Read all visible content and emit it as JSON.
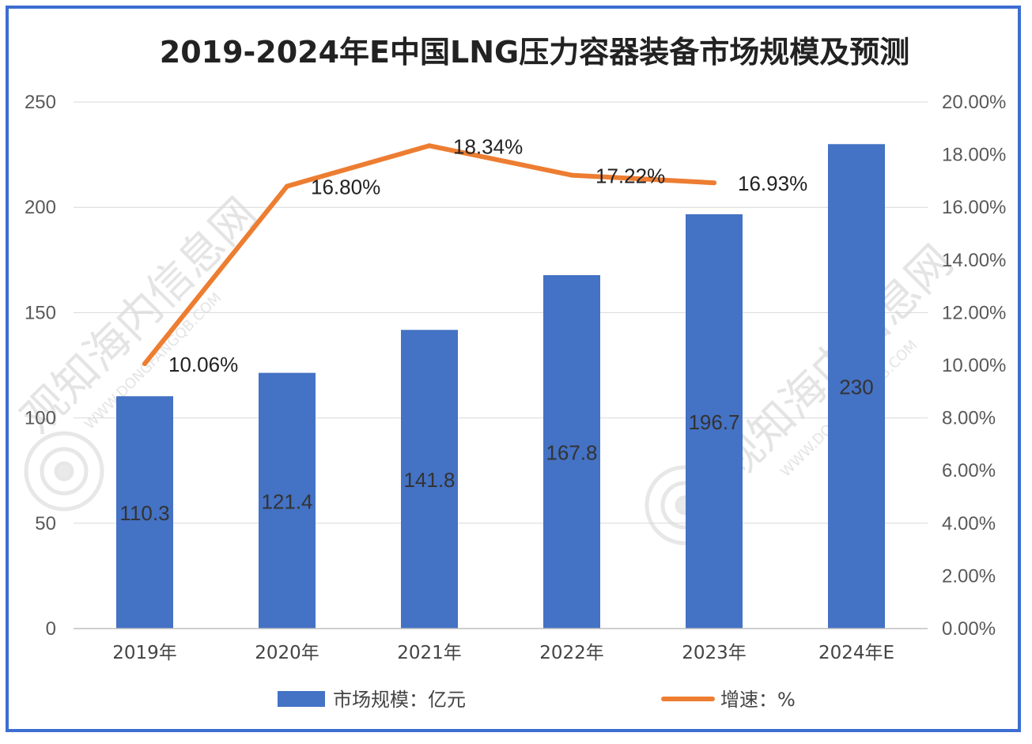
{
  "chart_data": {
    "type": "bar",
    "title": "2019-2024年E中国LNG压力容器装备市场规模及预测",
    "categories": [
      "2019年",
      "2020年",
      "2021年",
      "2022年",
      "2023年",
      "2024年E"
    ],
    "series": [
      {
        "name": "市场规模：亿元",
        "type": "bar",
        "axis": "left",
        "values": [
          110.3,
          121.4,
          141.8,
          167.8,
          196.7,
          230
        ],
        "labels": [
          "110.3",
          "121.4",
          "141.8",
          "167.8",
          "196.7",
          "230"
        ]
      },
      {
        "name": "增速：%",
        "type": "line",
        "axis": "right",
        "values": [
          10.06,
          16.8,
          18.34,
          17.22,
          16.93,
          null
        ],
        "labels": [
          "10.06%",
          "16.80%",
          "18.34%",
          "17.22%",
          "16.93%",
          null
        ]
      }
    ],
    "y_left": {
      "min": 0,
      "max": 250,
      "ticks": [
        "0",
        "50",
        "100",
        "150",
        "200",
        "250"
      ]
    },
    "y_right": {
      "min": 0,
      "max": 20,
      "ticks": [
        "0.00%",
        "2.00%",
        "4.00%",
        "6.00%",
        "8.00%",
        "10.00%",
        "12.00%",
        "14.00%",
        "16.00%",
        "18.00%",
        "20.00%"
      ]
    },
    "grid": true,
    "legend_position": "bottom",
    "colors": {
      "bar": "#4472c4",
      "line": "#ed7d31",
      "frame": "#3c6ed1",
      "grid": "#d9d9d9"
    }
  },
  "watermark": {
    "text": "观知海内信息网",
    "url": "WWW.DONGFANGQB.COM"
  }
}
